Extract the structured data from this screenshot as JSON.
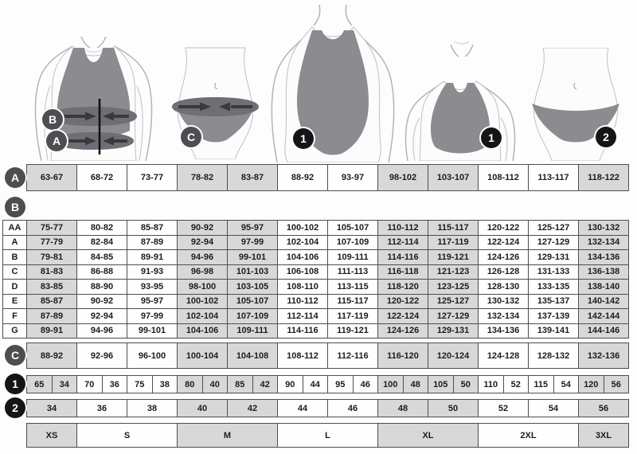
{
  "badges": {
    "a": "A",
    "b": "B",
    "c": "C",
    "one": "1",
    "two": "2"
  },
  "figures": [
    {
      "name": "bra-measurement-illustration",
      "labels": [
        "B",
        "A"
      ]
    },
    {
      "name": "panty-measurement-illustration",
      "labels": [
        "C"
      ]
    },
    {
      "name": "swimsuit-illustration",
      "labels": [
        "1"
      ]
    },
    {
      "name": "bra-illustration",
      "labels": [
        "1"
      ]
    },
    {
      "name": "panty-illustration",
      "labels": [
        "2"
      ]
    }
  ],
  "tables": {
    "row_a": {
      "label": "A",
      "cells": [
        "63-67",
        "68-72",
        "73-77",
        "78-82",
        "83-87",
        "88-92",
        "93-97",
        "98-102",
        "103-107",
        "108-112",
        "113-117",
        "118-122"
      ]
    },
    "section_b": {
      "label": "B",
      "rows": [
        {
          "label": "AA",
          "cells": [
            "75-77",
            "80-82",
            "85-87",
            "90-92",
            "95-97",
            "100-102",
            "105-107",
            "110-112",
            "115-117",
            "120-122",
            "125-127",
            "130-132"
          ]
        },
        {
          "label": "A",
          "cells": [
            "77-79",
            "82-84",
            "87-89",
            "92-94",
            "97-99",
            "102-104",
            "107-109",
            "112-114",
            "117-119",
            "122-124",
            "127-129",
            "132-134"
          ]
        },
        {
          "label": "B",
          "cells": [
            "79-81",
            "84-85",
            "89-91",
            "94-96",
            "99-101",
            "104-106",
            "109-111",
            "114-116",
            "119-121",
            "124-126",
            "129-131",
            "134-136"
          ]
        },
        {
          "label": "C",
          "cells": [
            "81-83",
            "86-88",
            "91-93",
            "96-98",
            "101-103",
            "106-108",
            "111-113",
            "116-118",
            "121-123",
            "126-128",
            "131-133",
            "136-138"
          ]
        },
        {
          "label": "D",
          "cells": [
            "83-85",
            "88-90",
            "93-95",
            "98-100",
            "103-105",
            "108-110",
            "113-115",
            "118-120",
            "123-125",
            "128-130",
            "133-135",
            "138-140"
          ]
        },
        {
          "label": "E",
          "cells": [
            "85-87",
            "90-92",
            "95-97",
            "100-102",
            "105-107",
            "110-112",
            "115-117",
            "120-122",
            "125-127",
            "130-132",
            "135-137",
            "140-142"
          ]
        },
        {
          "label": "F",
          "cells": [
            "87-89",
            "92-94",
            "97-99",
            "102-104",
            "107-109",
            "112-114",
            "117-119",
            "122-124",
            "127-129",
            "132-134",
            "137-139",
            "142-144"
          ]
        },
        {
          "label": "G",
          "cells": [
            "89-91",
            "94-96",
            "99-101",
            "104-106",
            "109-111",
            "114-116",
            "119-121",
            "124-126",
            "129-131",
            "134-136",
            "139-141",
            "144-146"
          ]
        }
      ]
    },
    "row_c": {
      "label": "C",
      "cells": [
        "88-92",
        "92-96",
        "96-100",
        "100-104",
        "104-108",
        "108-112",
        "112-116",
        "116-120",
        "120-124",
        "124-128",
        "128-132",
        "132-136"
      ]
    },
    "row_1": {
      "label": "1",
      "pairs": [
        [
          "65",
          "34"
        ],
        [
          "70",
          "36"
        ],
        [
          "75",
          "38"
        ],
        [
          "80",
          "40"
        ],
        [
          "85",
          "42"
        ],
        [
          "90",
          "44"
        ],
        [
          "95",
          "46"
        ],
        [
          "100",
          "48"
        ],
        [
          "105",
          "50"
        ],
        [
          "110",
          "52"
        ],
        [
          "115",
          "54"
        ],
        [
          "120",
          "56"
        ]
      ]
    },
    "row_2": {
      "label": "2",
      "cells": [
        "34",
        "36",
        "38",
        "40",
        "42",
        "44",
        "46",
        "48",
        "50",
        "52",
        "54",
        "56"
      ]
    },
    "sizes": {
      "cells": [
        {
          "label": "XS",
          "span": 1
        },
        {
          "label": "S",
          "span": 2
        },
        {
          "label": "M",
          "span": 2
        },
        {
          "label": "L",
          "span": 2
        },
        {
          "label": "XL",
          "span": 2
        },
        {
          "label": "2XL",
          "span": 2
        },
        {
          "label": "3XL",
          "span": 1
        }
      ]
    }
  },
  "colors": {
    "cell_gray": "#d8d8d8",
    "cell_white": "#fefefe",
    "border": "#4e4e4e",
    "badge_gray": "#4d4d52",
    "badge_black": "#151517",
    "garment": "#8b8b90",
    "measure_band": "#6e6e74",
    "arrow": "#3a3a3e",
    "text": "#1c1c1c"
  }
}
